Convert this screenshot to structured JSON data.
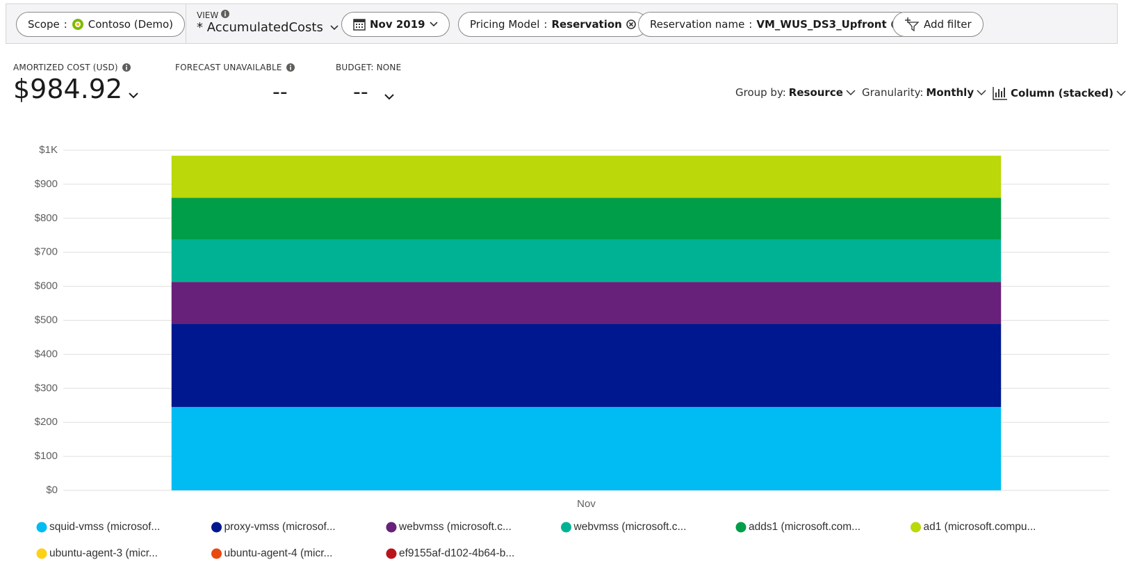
{
  "toolbar": {
    "scope_label": "Scope",
    "scope_sep": ":",
    "scope_value": "Contoso (Demo)",
    "view_label": "VIEW",
    "view_value": "* AccumulatedCosts",
    "date": "Nov 2019",
    "filter1_label": "Pricing Model",
    "filter1_sep": ":",
    "filter1_value": "Reservation",
    "filter2_label": "Reservation name",
    "filter2_sep": ":",
    "filter2_value": "VM_WUS_DS3_Upfront",
    "add_filter": "Add filter"
  },
  "summary": {
    "cost_label": "AMORTIZED COST (USD)",
    "cost_value": "$984.92",
    "forecast_label": "FORECAST UNAVAILABLE",
    "forecast_value": "--",
    "budget_label": "BUDGET: NONE",
    "budget_value": "--"
  },
  "controls": {
    "group_label": "Group by:",
    "group_value": "Resource",
    "granularity_label": "Granularity:",
    "granularity_value": "Monthly",
    "chart_value": "Column (stacked)"
  },
  "chart_data": {
    "type": "stacked_bar",
    "categories": [
      "Nov"
    ],
    "ylim": [
      0,
      1000
    ],
    "yticks": [
      {
        "value": 0,
        "label": "$0"
      },
      {
        "value": 100,
        "label": "$100"
      },
      {
        "value": 200,
        "label": "$200"
      },
      {
        "value": 300,
        "label": "$300"
      },
      {
        "value": 400,
        "label": "$400"
      },
      {
        "value": 500,
        "label": "$500"
      },
      {
        "value": 600,
        "label": "$600"
      },
      {
        "value": 700,
        "label": "$700"
      },
      {
        "value": 800,
        "label": "$800"
      },
      {
        "value": 900,
        "label": "$900"
      },
      {
        "value": 1000,
        "label": "$1K"
      }
    ],
    "grid": true,
    "series": [
      {
        "name": "squid-vmss (microsof...",
        "color": "#00bcf2",
        "values": [
          245
        ]
      },
      {
        "name": "proxy-vmss (microsof...",
        "color": "#00188f",
        "values": [
          245
        ]
      },
      {
        "name": "webvmss (microsoft.c...",
        "color": "#68217a",
        "values": [
          123
        ]
      },
      {
        "name": "webvmss (microsoft.c...",
        "color": "#00b294",
        "values": [
          124
        ]
      },
      {
        "name": "adds1 (microsoft.com...",
        "color": "#009e49",
        "values": [
          123
        ]
      },
      {
        "name": "ad1 (microsoft.compu...",
        "color": "#bad80a",
        "values": [
          124
        ]
      },
      {
        "name": "ubuntu-agent-3 (micr...",
        "color": "#fcd116",
        "values": [
          0
        ]
      },
      {
        "name": "ubuntu-agent-4 (micr...",
        "color": "#e8490f",
        "values": [
          0
        ]
      },
      {
        "name": "ef9155af-d102-4b64-b...",
        "color": "#ba141a",
        "values": [
          0
        ]
      }
    ]
  }
}
